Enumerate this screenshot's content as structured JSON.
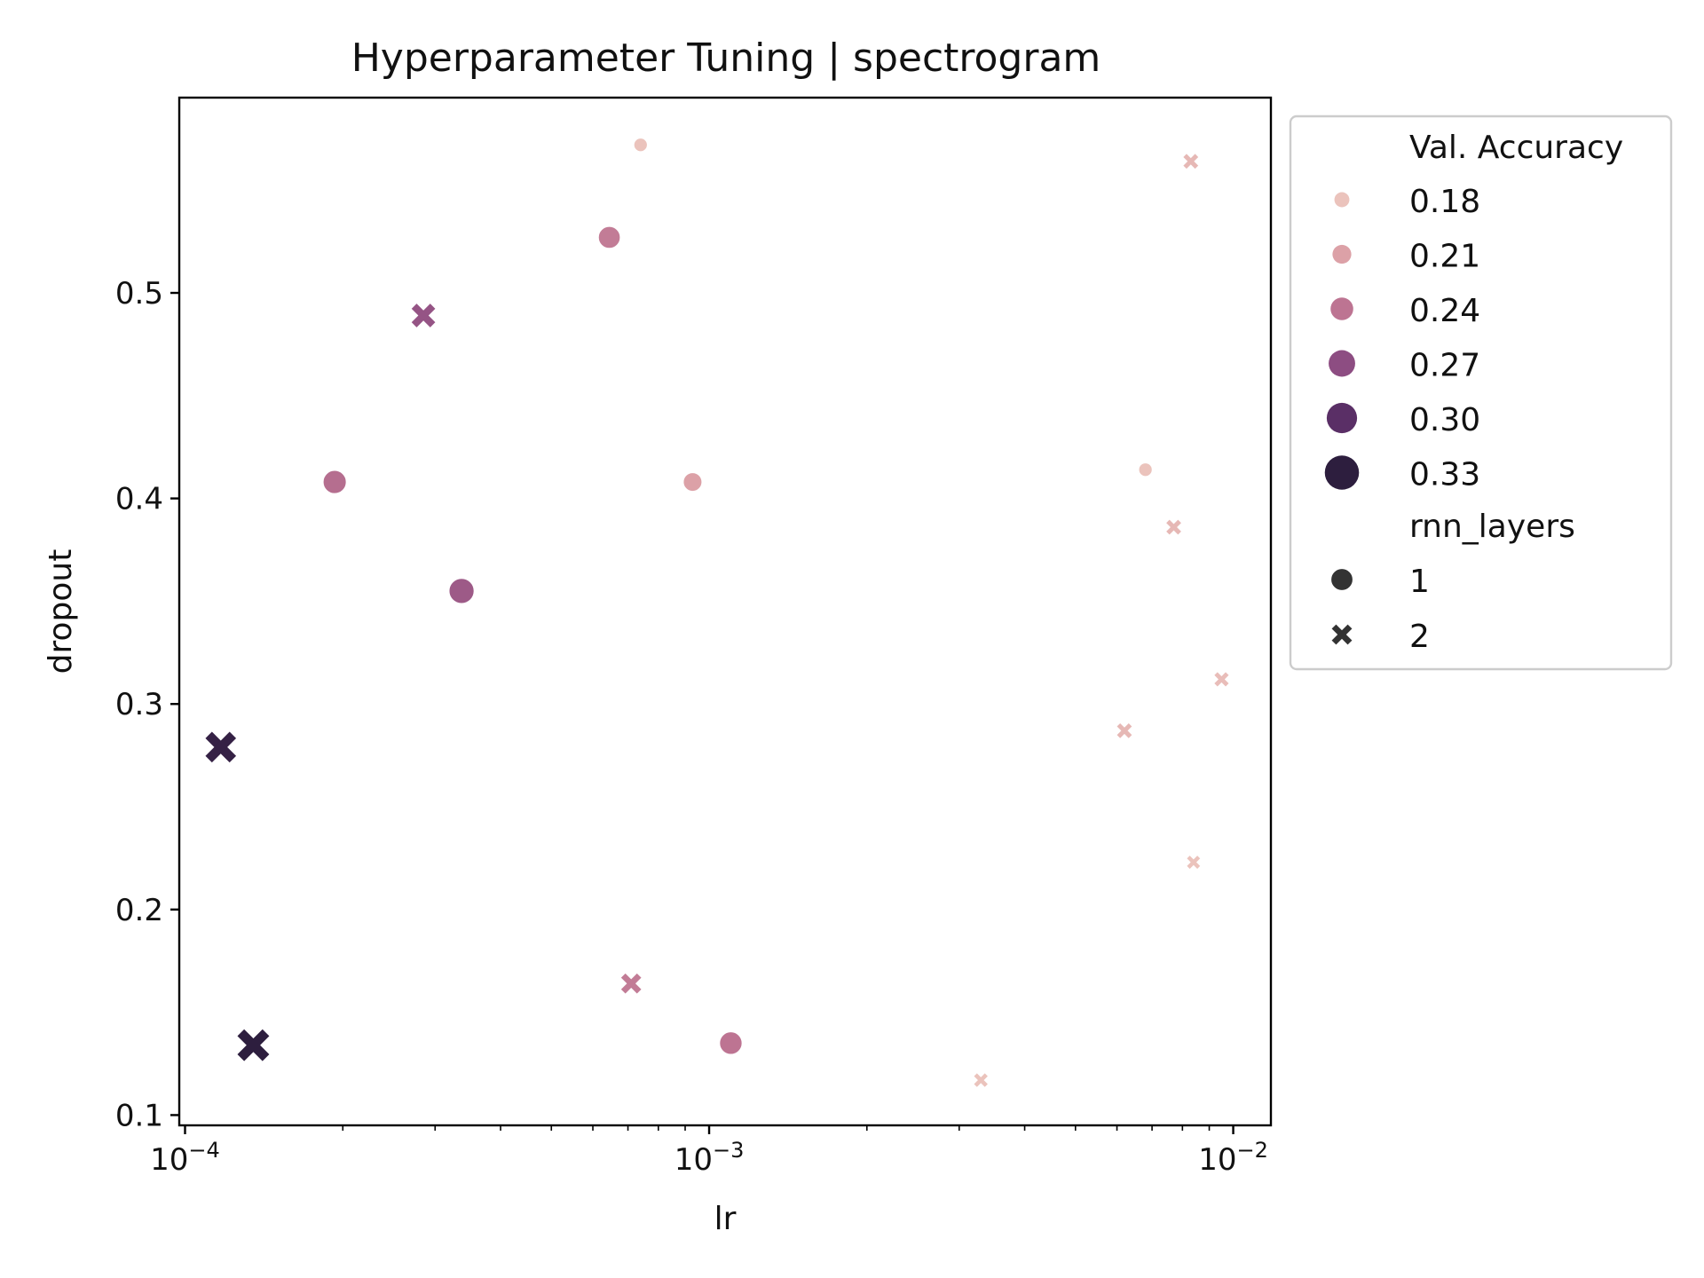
{
  "chart_data": {
    "type": "scatter",
    "title": "Hyperparameter Tuning | spectrogram",
    "xlabel": "lr",
    "ylabel": "dropout",
    "xscale": "log",
    "xlim": [
      9.75e-05,
      0.0118
    ],
    "ylim": [
      0.095,
      0.595
    ],
    "xticks": [
      {
        "value": 0.0001,
        "label": "10",
        "exp": "−4"
      },
      {
        "value": 0.001,
        "label": "10",
        "exp": "−3"
      },
      {
        "value": 0.01,
        "label": "10",
        "exp": "−2"
      }
    ],
    "yticks": [
      {
        "value": 0.1,
        "label": "0.1"
      },
      {
        "value": 0.2,
        "label": "0.2"
      },
      {
        "value": 0.3,
        "label": "0.3"
      },
      {
        "value": 0.4,
        "label": "0.4"
      },
      {
        "value": 0.5,
        "label": "0.5"
      }
    ],
    "grid": false,
    "legend_position": "outside-right",
    "hue": {
      "title": "Val. Accuracy",
      "min": 0.16,
      "max": 0.34,
      "levels": [
        {
          "label": "0.18",
          "value": 0.18,
          "color": "#ebc3bc"
        },
        {
          "label": "0.21",
          "value": 0.21,
          "color": "#dca1a7"
        },
        {
          "label": "0.24",
          "value": 0.24,
          "color": "#bd7492"
        },
        {
          "label": "0.27",
          "value": 0.27,
          "color": "#8d4d82"
        },
        {
          "label": "0.30",
          "value": 0.3,
          "color": "#5a2f66"
        },
        {
          "label": "0.33",
          "value": 0.33,
          "color": "#2d1e3e"
        }
      ]
    },
    "style": {
      "title": "rnn_layers",
      "levels": [
        {
          "label": "1",
          "marker": "circle",
          "color": "#333333"
        },
        {
          "label": "2",
          "marker": "x",
          "color": "#333333"
        }
      ]
    },
    "points": [
      {
        "lr": 0.00074,
        "dropout": 0.572,
        "acc": 0.17,
        "rnn_layers": 1
      },
      {
        "lr": 0.000645,
        "dropout": 0.527,
        "acc": 0.235,
        "rnn_layers": 1
      },
      {
        "lr": 0.000193,
        "dropout": 0.408,
        "acc": 0.245,
        "rnn_layers": 1
      },
      {
        "lr": 0.00093,
        "dropout": 0.408,
        "acc": 0.21,
        "rnn_layers": 1
      },
      {
        "lr": 0.000337,
        "dropout": 0.355,
        "acc": 0.26,
        "rnn_layers": 1
      },
      {
        "lr": 0.0011,
        "dropout": 0.135,
        "acc": 0.24,
        "rnn_layers": 1
      },
      {
        "lr": 0.0068,
        "dropout": 0.414,
        "acc": 0.17,
        "rnn_layers": 1
      },
      {
        "lr": 0.000285,
        "dropout": 0.489,
        "acc": 0.265,
        "rnn_layers": 2
      },
      {
        "lr": 0.000117,
        "dropout": 0.279,
        "acc": 0.325,
        "rnn_layers": 2
      },
      {
        "lr": 0.000135,
        "dropout": 0.134,
        "acc": 0.335,
        "rnn_layers": 2
      },
      {
        "lr": 0.00071,
        "dropout": 0.164,
        "acc": 0.235,
        "rnn_layers": 2
      },
      {
        "lr": 0.0033,
        "dropout": 0.117,
        "acc": 0.18,
        "rnn_layers": 2
      },
      {
        "lr": 0.0083,
        "dropout": 0.564,
        "acc": 0.19,
        "rnn_layers": 2
      },
      {
        "lr": 0.0077,
        "dropout": 0.386,
        "acc": 0.19,
        "rnn_layers": 2
      },
      {
        "lr": 0.0095,
        "dropout": 0.312,
        "acc": 0.185,
        "rnn_layers": 2
      },
      {
        "lr": 0.0062,
        "dropout": 0.287,
        "acc": 0.19,
        "rnn_layers": 2
      },
      {
        "lr": 0.0084,
        "dropout": 0.223,
        "acc": 0.175,
        "rnn_layers": 2
      }
    ]
  }
}
